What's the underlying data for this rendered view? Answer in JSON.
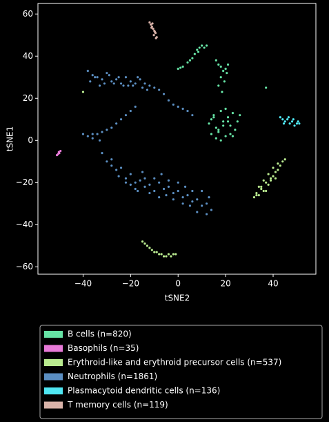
{
  "chart_data": {
    "type": "scatter",
    "xlabel": "tSNE2",
    "ylabel": "tSNE1",
    "xlim": [
      -59,
      58
    ],
    "ylim": [
      -63.5,
      65
    ],
    "xticks": [
      {
        "value": -40,
        "label": "−40"
      },
      {
        "value": -20,
        "label": "−20"
      },
      0,
      20,
      40
    ],
    "yticks": [
      {
        "value": -60,
        "label": "−60"
      },
      {
        "value": -40,
        "label": "−40"
      },
      {
        "value": -20,
        "label": "−20"
      },
      0,
      20,
      40,
      60
    ],
    "grid": false,
    "legend": "bottom",
    "series": [
      {
        "name": "B cells (n=820)",
        "color": "#66e3a5",
        "x": [
          0,
          1,
          2,
          4,
          5,
          6,
          7,
          8,
          9,
          10,
          11,
          12,
          8.5,
          16,
          17,
          18,
          19,
          20,
          21,
          18,
          17,
          18.5,
          19.5,
          20.5,
          13,
          14,
          15,
          16,
          17,
          18,
          19,
          20,
          21,
          22,
          23,
          24,
          25,
          26,
          14,
          16,
          18,
          20,
          22,
          15,
          17,
          19,
          21,
          23,
          37
        ],
        "y": [
          34,
          34.5,
          35,
          37,
          38,
          39,
          41,
          43,
          44,
          45,
          44,
          45,
          42,
          38,
          36,
          35,
          33,
          34,
          36,
          30,
          26,
          23,
          28,
          32,
          8,
          10,
          12,
          6,
          4,
          14,
          9,
          2,
          11,
          7,
          13,
          5,
          9,
          12,
          3,
          1,
          0,
          15,
          3,
          11,
          5,
          7,
          9,
          2,
          25
        ]
      },
      {
        "name": "Basophils (n=35)",
        "color": "#e87ad8",
        "x": [
          -51,
          -50.5,
          -50,
          -49.5,
          -50.2
        ],
        "y": [
          -7,
          -6.5,
          -6,
          -5,
          -5.5
        ]
      },
      {
        "name": "Erythroid-like and erythroid precursor cells (n=537)",
        "color": "#b9ea8f",
        "x": [
          32,
          33,
          34,
          35,
          36,
          37,
          38,
          39,
          40,
          41,
          42,
          43,
          44,
          45,
          34,
          36,
          38,
          40,
          42,
          33,
          35,
          37,
          39,
          41,
          -15,
          -14,
          -13,
          -12,
          -11,
          -10,
          -9,
          -8,
          -7,
          -6,
          -5,
          -4,
          -3,
          -2,
          -1,
          -40
        ],
        "y": [
          -27,
          -25,
          -26,
          -22,
          -24,
          -20,
          -21,
          -18,
          -17,
          -15,
          -14,
          -12,
          -10,
          -9,
          -22,
          -19,
          -16,
          -13,
          -11,
          -26,
          -23,
          -24,
          -19,
          -18,
          -48,
          -49,
          -50,
          -51,
          -52,
          -53,
          -53,
          -54,
          -54,
          -55,
          -55,
          -54,
          -55,
          -54,
          -54,
          23
        ]
      },
      {
        "name": "Neutrophils (n=1861)",
        "color": "#5b8ec1",
        "x": [
          -38,
          -36,
          -34,
          -32,
          -30,
          -28,
          -26,
          -24,
          -22,
          -20,
          -18,
          -16,
          -14,
          -12,
          -10,
          -8,
          -6,
          -4,
          -2,
          0,
          2,
          4,
          6,
          -37,
          -33,
          -29,
          -25,
          -21,
          -17,
          -13,
          -35,
          -31,
          -27,
          -23,
          -19,
          -15,
          -18,
          -20,
          -22,
          -24,
          -26,
          -28,
          -30,
          -32,
          -34,
          -36,
          -38,
          -40,
          -36,
          -33,
          -32,
          -30,
          -28,
          -26,
          -24,
          -22,
          -20,
          -18,
          -16,
          -14,
          -12,
          -10,
          -8,
          -6,
          -4,
          -2,
          0,
          2,
          4,
          6,
          8,
          10,
          12,
          14,
          -25,
          -20,
          -15,
          -10,
          -5,
          0,
          5,
          10,
          -22,
          -17,
          -12,
          -7,
          -2,
          3,
          8,
          13,
          -28,
          -18,
          -8,
          2,
          12,
          -14,
          -4,
          6
        ],
        "y": [
          33,
          31,
          30,
          29,
          32,
          28,
          29,
          27,
          30,
          28,
          27,
          29,
          27,
          26,
          25,
          24,
          22,
          19,
          17,
          16,
          15,
          14,
          12,
          28,
          26,
          31,
          30,
          26,
          30,
          24,
          30,
          27,
          27,
          26,
          26,
          25,
          16,
          14,
          12,
          10,
          8,
          6,
          5,
          4,
          3,
          3,
          2,
          3,
          1,
          0,
          -6,
          -10,
          -12,
          -14,
          -13,
          -18,
          -16,
          -20,
          -19,
          -22,
          -21,
          -24,
          -20,
          -23,
          -22,
          -25,
          -24,
          -27,
          -26,
          -29,
          -28,
          -31,
          -30,
          -33,
          -17,
          -21,
          -15,
          -18,
          -26,
          -20,
          -31,
          -24,
          -20,
          -24,
          -25,
          -16,
          -28,
          -22,
          -34,
          -27,
          -9,
          -23,
          -27,
          -30,
          -35,
          -18,
          -19,
          -24
        ]
      },
      {
        "name": "Plasmacytoid dendritic cells (n=136)",
        "color": "#4fe6f2",
        "x": [
          43,
          44,
          45,
          46,
          47,
          48,
          49,
          50,
          51,
          44.5,
          46.5,
          48.5,
          50.5
        ],
        "y": [
          11,
          10,
          9,
          10,
          8,
          9,
          7,
          8,
          8,
          8,
          11,
          10,
          9
        ]
      },
      {
        "name": "T memory cells (n=119)",
        "color": "#d9b3a9",
        "x": [
          -12,
          -11.5,
          -11,
          -10.5,
          -10,
          -9.5,
          -9,
          -10.8,
          -9.8,
          -11.2,
          -10.2,
          -9.3
        ],
        "y": [
          56,
          55,
          54,
          53,
          52,
          51,
          49,
          55.5,
          51.5,
          53.5,
          50,
          48.5
        ]
      }
    ]
  }
}
